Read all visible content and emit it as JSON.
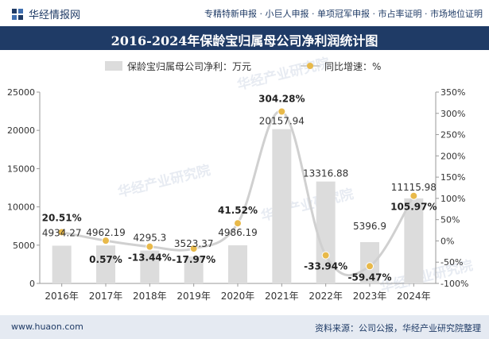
{
  "header": {
    "brand_name": "华经情报网",
    "tagline": "专精特新申报 · 小巨人申报 · 单项冠军申报 · 市占率证明 · 市场地位证明",
    "logo_icon": "huajing-logo-icon"
  },
  "watermark": "华经产业研究院",
  "footer": {
    "website": "www.huaon.com",
    "source": "资料来源：公司公报，华经产业研究院整理"
  },
  "colors": {
    "bar": "#dcdcdc",
    "line": "#d0d0d0",
    "marker": "#e8b94a",
    "header_bg": "#1f3b66",
    "footer_bg": "#e5eaf2"
  },
  "chart_data": {
    "type": "bar",
    "title": "2016-2024年保龄宝归属母公司净利润统计图",
    "categories": [
      "2016年",
      "2017年",
      "2018年",
      "2019年",
      "2020年",
      "2021年",
      "2022年",
      "2023年",
      "2024年"
    ],
    "series": [
      {
        "name": "保龄宝归属母公司净利：万元",
        "type": "bar",
        "values": [
          4934.27,
          4962.19,
          4295.3,
          3523.37,
          4986.19,
          20157.94,
          13316.88,
          5396.9,
          11115.98
        ],
        "labels": [
          "4934.27",
          "4962.19",
          "4295.3",
          "3523.37",
          "4986.19",
          "20157.94",
          "13316.88",
          "5396.9",
          "11115.98"
        ]
      },
      {
        "name": "同比增速：%",
        "type": "line",
        "axis": "right",
        "values": [
          20.51,
          0.57,
          -13.44,
          -17.97,
          41.52,
          304.28,
          -33.94,
          -59.47,
          105.97
        ],
        "labels": [
          "20.51%",
          "0.57%",
          "-13.44%",
          "-17.97%",
          "41.52%",
          "304.28%",
          "-33.94%",
          "-59.47%",
          "105.97%"
        ]
      }
    ],
    "y_left": {
      "min": 0,
      "max": 25000,
      "ticks": [
        0,
        5000,
        10000,
        15000,
        20000,
        25000
      ],
      "tick_labels": [
        "0",
        "5000",
        "10000",
        "15000",
        "20000",
        "25000"
      ]
    },
    "y_right": {
      "min": -100,
      "max": 350,
      "ticks": [
        -100,
        -50,
        0,
        50,
        100,
        150,
        200,
        250,
        300,
        350
      ],
      "tick_labels": [
        "-100%",
        "-50%",
        "0%",
        "50%",
        "100%",
        "150%",
        "200%",
        "250%",
        "300%",
        "350%"
      ]
    },
    "grid": false,
    "legend_position": "top-center"
  }
}
